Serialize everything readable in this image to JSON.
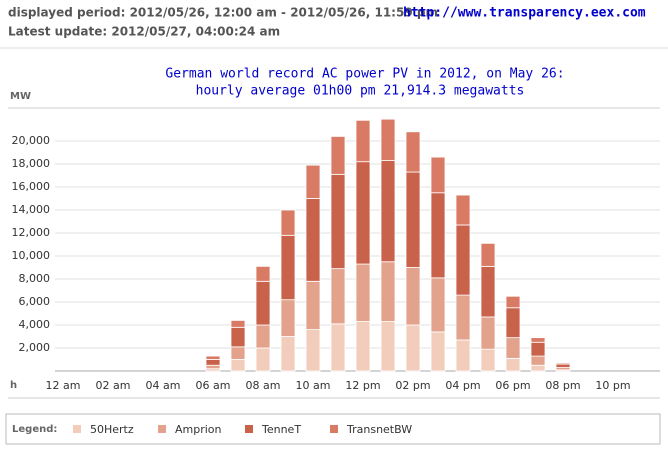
{
  "header": {
    "displayed_period": "displayed period: 2012/05/26, 12:00 am - 2012/05/26, 11:59 pm",
    "latest_update": "Latest update: 2012/05/27, 04:00:24 am",
    "url": "http://www.transparency.eex.com"
  },
  "chart_data": {
    "type": "bar",
    "stacked": true,
    "title": "German world record AC power PV in 2012, on May 26:",
    "subtitle": "hourly average 01h00 pm 21,914.3 megawatts",
    "y_label": "MW",
    "x_label": "h",
    "legend_title": "Legend:",
    "categories": [
      "12 am",
      null,
      "02 am",
      null,
      "04 am",
      null,
      "06 am",
      null,
      "08 am",
      null,
      "10 am",
      null,
      "12 pm",
      null,
      "02 pm",
      null,
      "04 pm",
      null,
      "06 pm",
      null,
      "08 pm",
      null,
      "10 pm",
      null
    ],
    "series": [
      {
        "name": "50Hertz",
        "color": "#f3cdbc",
        "values": [
          0,
          0,
          0,
          0,
          0,
          0,
          200,
          1000,
          2000,
          3000,
          3600,
          4100,
          4300,
          4300,
          4000,
          3400,
          2700,
          1900,
          1100,
          500,
          100,
          0,
          0,
          0
        ]
      },
      {
        "name": "Amprion",
        "color": "#e2a28c",
        "values": [
          0,
          0,
          0,
          0,
          0,
          0,
          300,
          1100,
          2000,
          3200,
          4200,
          4800,
          5000,
          5200,
          5000,
          4700,
          3900,
          2800,
          1800,
          800,
          200,
          0,
          0,
          0
        ]
      },
      {
        "name": "TenneT",
        "color": "#c8624b",
        "values": [
          0,
          0,
          0,
          0,
          0,
          0,
          500,
          1700,
          3800,
          5600,
          7200,
          8200,
          8900,
          8800,
          8300,
          7400,
          6100,
          4400,
          2600,
          1200,
          300,
          0,
          0,
          0
        ]
      },
      {
        "name": "TransnetBW",
        "color": "#d97a65",
        "values": [
          0,
          0,
          0,
          0,
          0,
          0,
          300,
          600,
          1300,
          2200,
          2900,
          3300,
          3600,
          3600,
          3500,
          3100,
          2600,
          2000,
          1000,
          400,
          100,
          0,
          0,
          0
        ]
      }
    ],
    "ylim": [
      0,
      22000
    ],
    "yticks": [
      {
        "value": 2000,
        "label": "2,000"
      },
      {
        "value": 4000,
        "label": "4,000"
      },
      {
        "value": 6000,
        "label": "6,000"
      },
      {
        "value": 8000,
        "label": "8,000"
      },
      {
        "value": 10000,
        "label": "10,000"
      },
      {
        "value": 12000,
        "label": "12,000"
      },
      {
        "value": 14000,
        "label": "14,000"
      },
      {
        "value": 16000,
        "label": "16,000"
      },
      {
        "value": 18000,
        "label": "18,000"
      },
      {
        "value": 20000,
        "label": "20,000"
      }
    ],
    "grid": true,
    "legend": "bottom"
  }
}
